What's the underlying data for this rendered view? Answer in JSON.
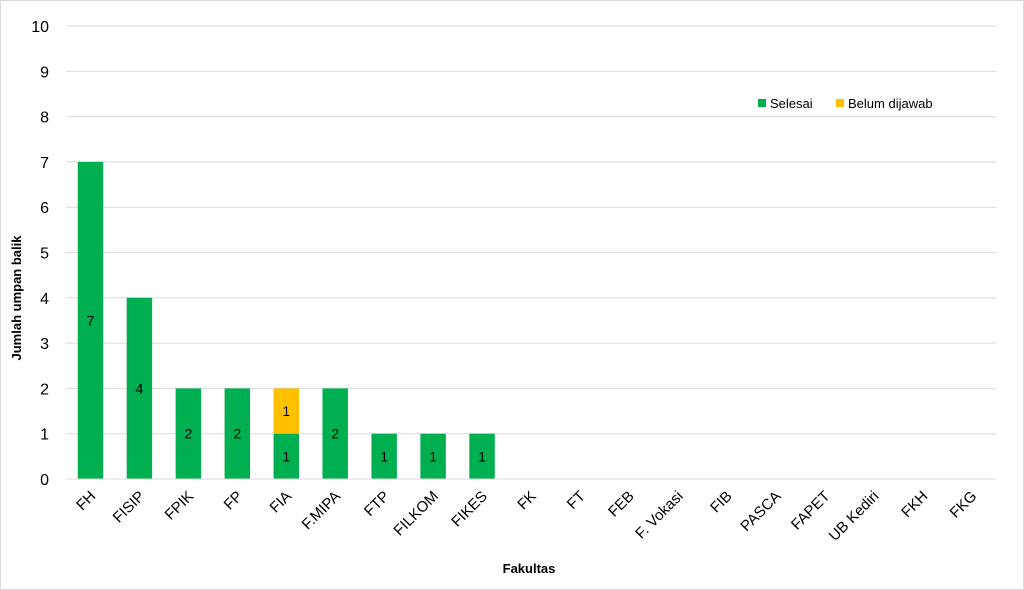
{
  "chart_data": {
    "type": "bar",
    "stacked": true,
    "categories": [
      "FH",
      "FISIP",
      "FPIK",
      "FP",
      "FIA",
      "F.MIPA",
      "FTP",
      "FILKOM",
      "FIKES",
      "FK",
      "FT",
      "FEB",
      "F. Vokasi",
      "FIB",
      "PASCA",
      "FAPET",
      "UB Kediri",
      "FKH",
      "FKG"
    ],
    "series": [
      {
        "name": "Selesai",
        "color": "#00b050",
        "values": [
          7,
          4,
          2,
          2,
          1,
          2,
          1,
          1,
          1,
          0,
          0,
          0,
          0,
          0,
          0,
          0,
          0,
          0,
          0
        ]
      },
      {
        "name": "Belum dijawab",
        "color": "#ffc000",
        "values": [
          0,
          0,
          0,
          0,
          1,
          0,
          0,
          0,
          0,
          0,
          0,
          0,
          0,
          0,
          0,
          0,
          0,
          0,
          0
        ]
      }
    ],
    "title": "",
    "xlabel": "Fakultas",
    "ylabel": "Jumlah umpan balik",
    "ylim": [
      0,
      10
    ],
    "yticks": [
      0,
      1,
      2,
      3,
      4,
      5,
      6,
      7,
      8,
      9,
      10
    ],
    "grid": true,
    "legend_position": "top-right"
  }
}
